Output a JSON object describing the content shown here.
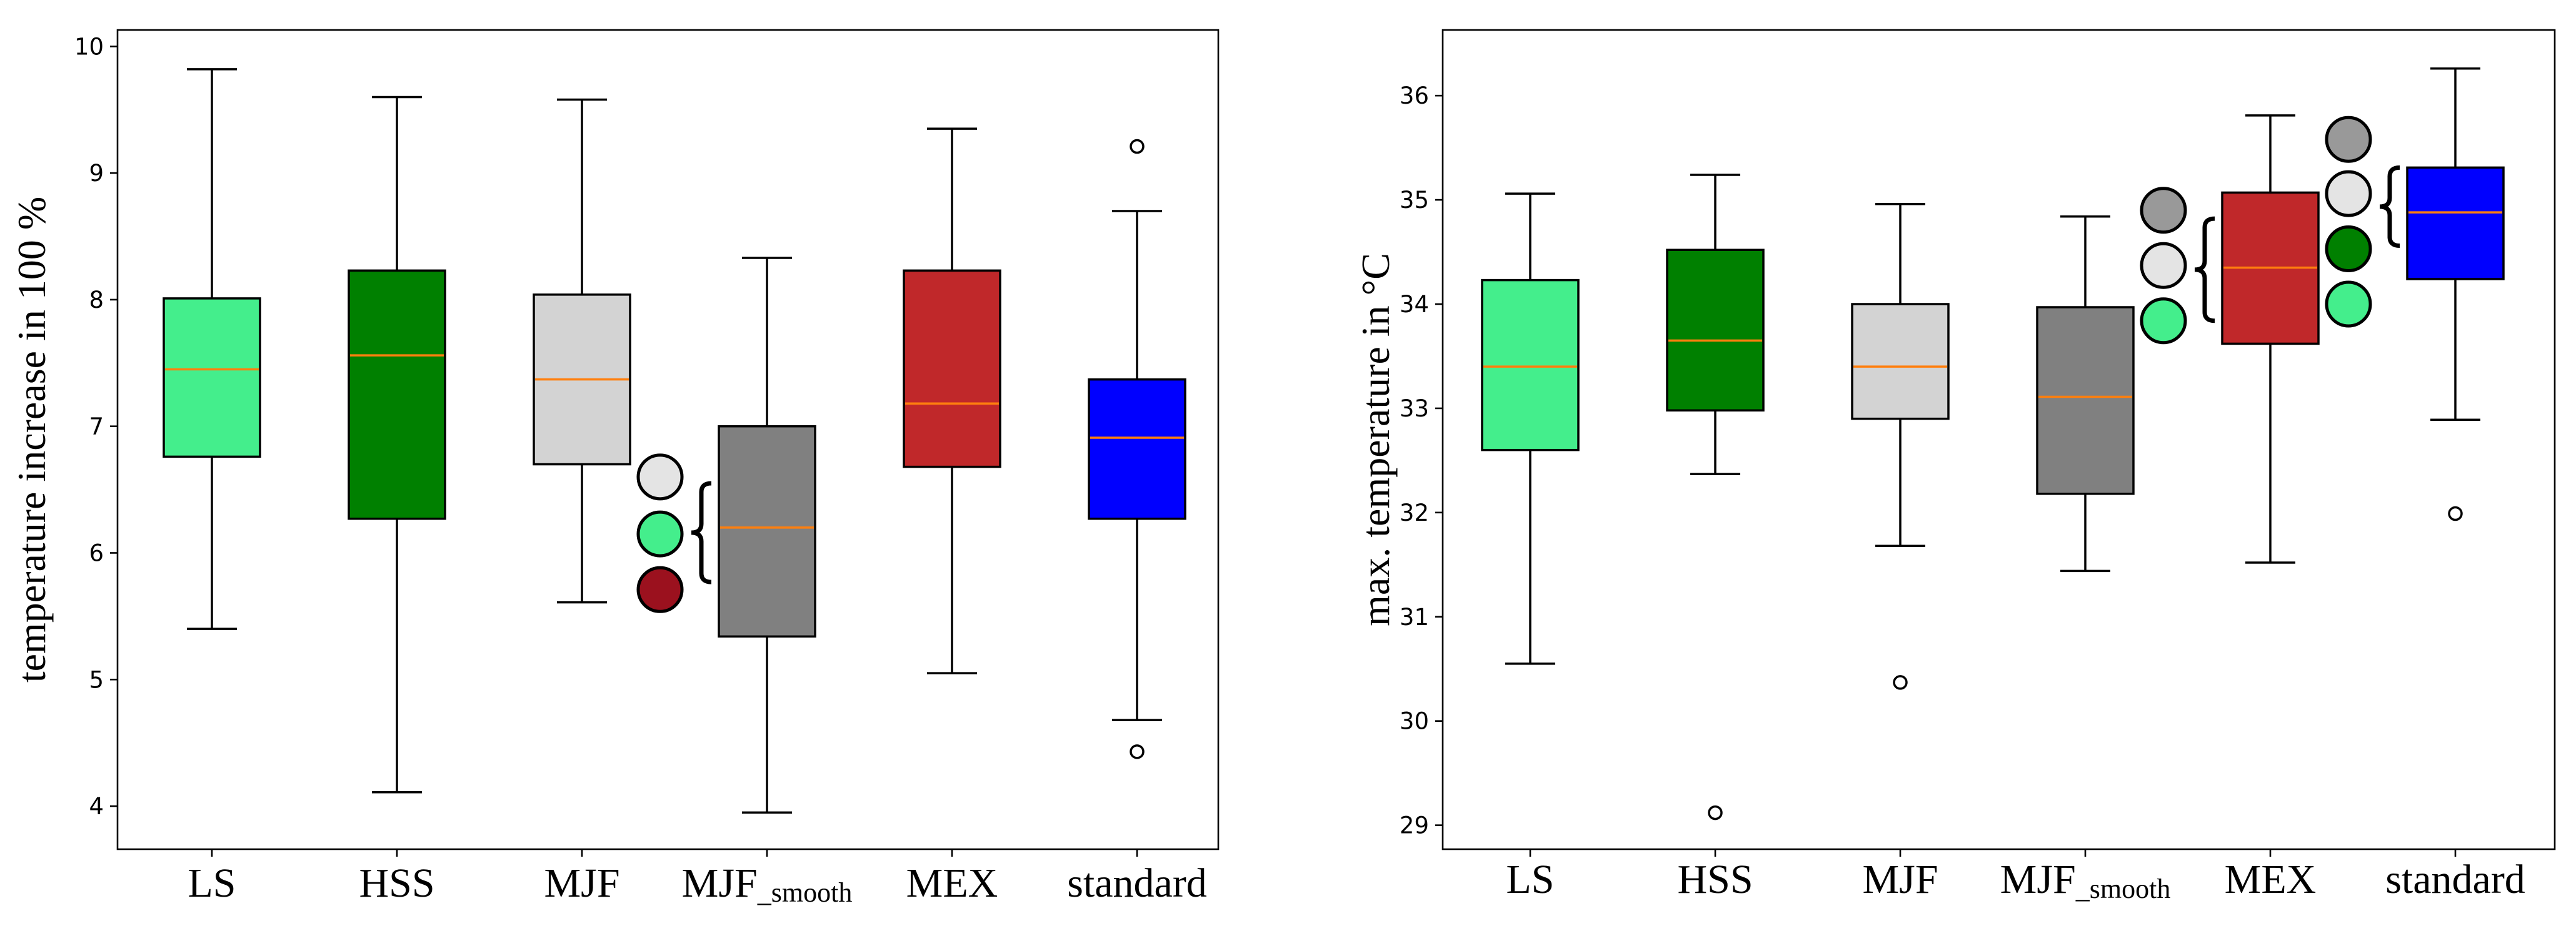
{
  "chart_data": [
    {
      "type": "box",
      "ylabel": "temperature increase in 100 %",
      "ylim": [
        3.66,
        10.13
      ],
      "yticks": [
        4,
        5,
        6,
        7,
        8,
        9,
        10
      ],
      "median_color": "#ff7f0e",
      "categories": [
        {
          "label": "LS",
          "sub": "",
          "color": "#44ee8c",
          "whislo": 5.4,
          "q1": 6.76,
          "med": 7.45,
          "q3": 8.01,
          "whishi": 9.82,
          "fliers": []
        },
        {
          "label": "HSS",
          "sub": "",
          "color": "#008000",
          "whislo": 4.11,
          "q1": 6.27,
          "med": 7.56,
          "q3": 8.23,
          "whishi": 9.6,
          "fliers": []
        },
        {
          "label": "MJF",
          "sub": "",
          "color": "#d3d3d3",
          "whislo": 5.61,
          "q1": 6.7,
          "med": 7.37,
          "q3": 8.04,
          "whishi": 9.58,
          "fliers": []
        },
        {
          "label": "MJF",
          "sub": "_smooth",
          "color": "#808080",
          "whislo": 3.95,
          "q1": 5.34,
          "med": 6.2,
          "q3": 7.0,
          "whishi": 8.33,
          "fliers": []
        },
        {
          "label": "MEX",
          "sub": "",
          "color": "#c0282a",
          "whislo": 5.05,
          "q1": 6.68,
          "med": 7.18,
          "q3": 8.23,
          "whishi": 9.35,
          "fliers": []
        },
        {
          "label": "standard",
          "sub": "",
          "color": "#0000ff",
          "whislo": 4.68,
          "q1": 6.27,
          "med": 6.91,
          "q3": 7.37,
          "whishi": 8.7,
          "fliers": [
            9.21,
            4.43
          ]
        }
      ],
      "annotations": [
        {
          "after_box": 3,
          "side": "left",
          "marker_colors": [
            "#e4e4e4",
            "#44ee8c",
            "#9b111e"
          ],
          "marker_values": [
            6.6,
            6.15,
            5.71
          ],
          "brace_range": [
            5.77,
            6.55
          ]
        }
      ]
    },
    {
      "type": "box",
      "ylabel": "max. temperature in °C",
      "ylim": [
        28.77,
        36.63
      ],
      "yticks": [
        29,
        30,
        31,
        32,
        33,
        34,
        35,
        36
      ],
      "median_color": "#ff7f0e",
      "categories": [
        {
          "label": "LS",
          "sub": "",
          "color": "#44ee8c",
          "whislo": 30.55,
          "q1": 32.6,
          "med": 33.4,
          "q3": 34.23,
          "whishi": 35.06,
          "fliers": []
        },
        {
          "label": "HSS",
          "sub": "",
          "color": "#008000",
          "whislo": 32.37,
          "q1": 32.98,
          "med": 33.65,
          "q3": 34.52,
          "whishi": 35.24,
          "fliers": [
            29.12
          ]
        },
        {
          "label": "MJF",
          "sub": "",
          "color": "#d3d3d3",
          "whislo": 31.68,
          "q1": 32.9,
          "med": 33.4,
          "q3": 34.0,
          "whishi": 34.96,
          "fliers": [
            30.37
          ]
        },
        {
          "label": "MJF",
          "sub": "_smooth",
          "color": "#808080",
          "whislo": 31.44,
          "q1": 32.18,
          "med": 33.11,
          "q3": 33.97,
          "whishi": 34.84,
          "fliers": []
        },
        {
          "label": "MEX",
          "sub": "",
          "color": "#c0282a",
          "whislo": 31.52,
          "q1": 33.62,
          "med": 34.35,
          "q3": 35.07,
          "whishi": 35.81,
          "fliers": []
        },
        {
          "label": "standard",
          "sub": "",
          "color": "#0000ff",
          "whislo": 32.89,
          "q1": 34.24,
          "med": 34.88,
          "q3": 35.31,
          "whishi": 36.26,
          "fliers": [
            31.99
          ]
        }
      ],
      "annotations": [
        {
          "after_box": 4,
          "side": "left",
          "marker_colors": [
            "#999999",
            "#e4e4e4",
            "#44ee8c"
          ],
          "marker_values": [
            34.9,
            34.37,
            33.84
          ],
          "brace_range": [
            33.84,
            34.82
          ]
        },
        {
          "after_box": 5,
          "side": "left",
          "marker_colors": [
            "#999999",
            "#e4e4e4",
            "#008000",
            "#44ee8c"
          ],
          "marker_values": [
            35.58,
            35.06,
            34.53,
            34.0
          ],
          "brace_range": [
            34.56,
            35.31
          ]
        }
      ]
    }
  ]
}
